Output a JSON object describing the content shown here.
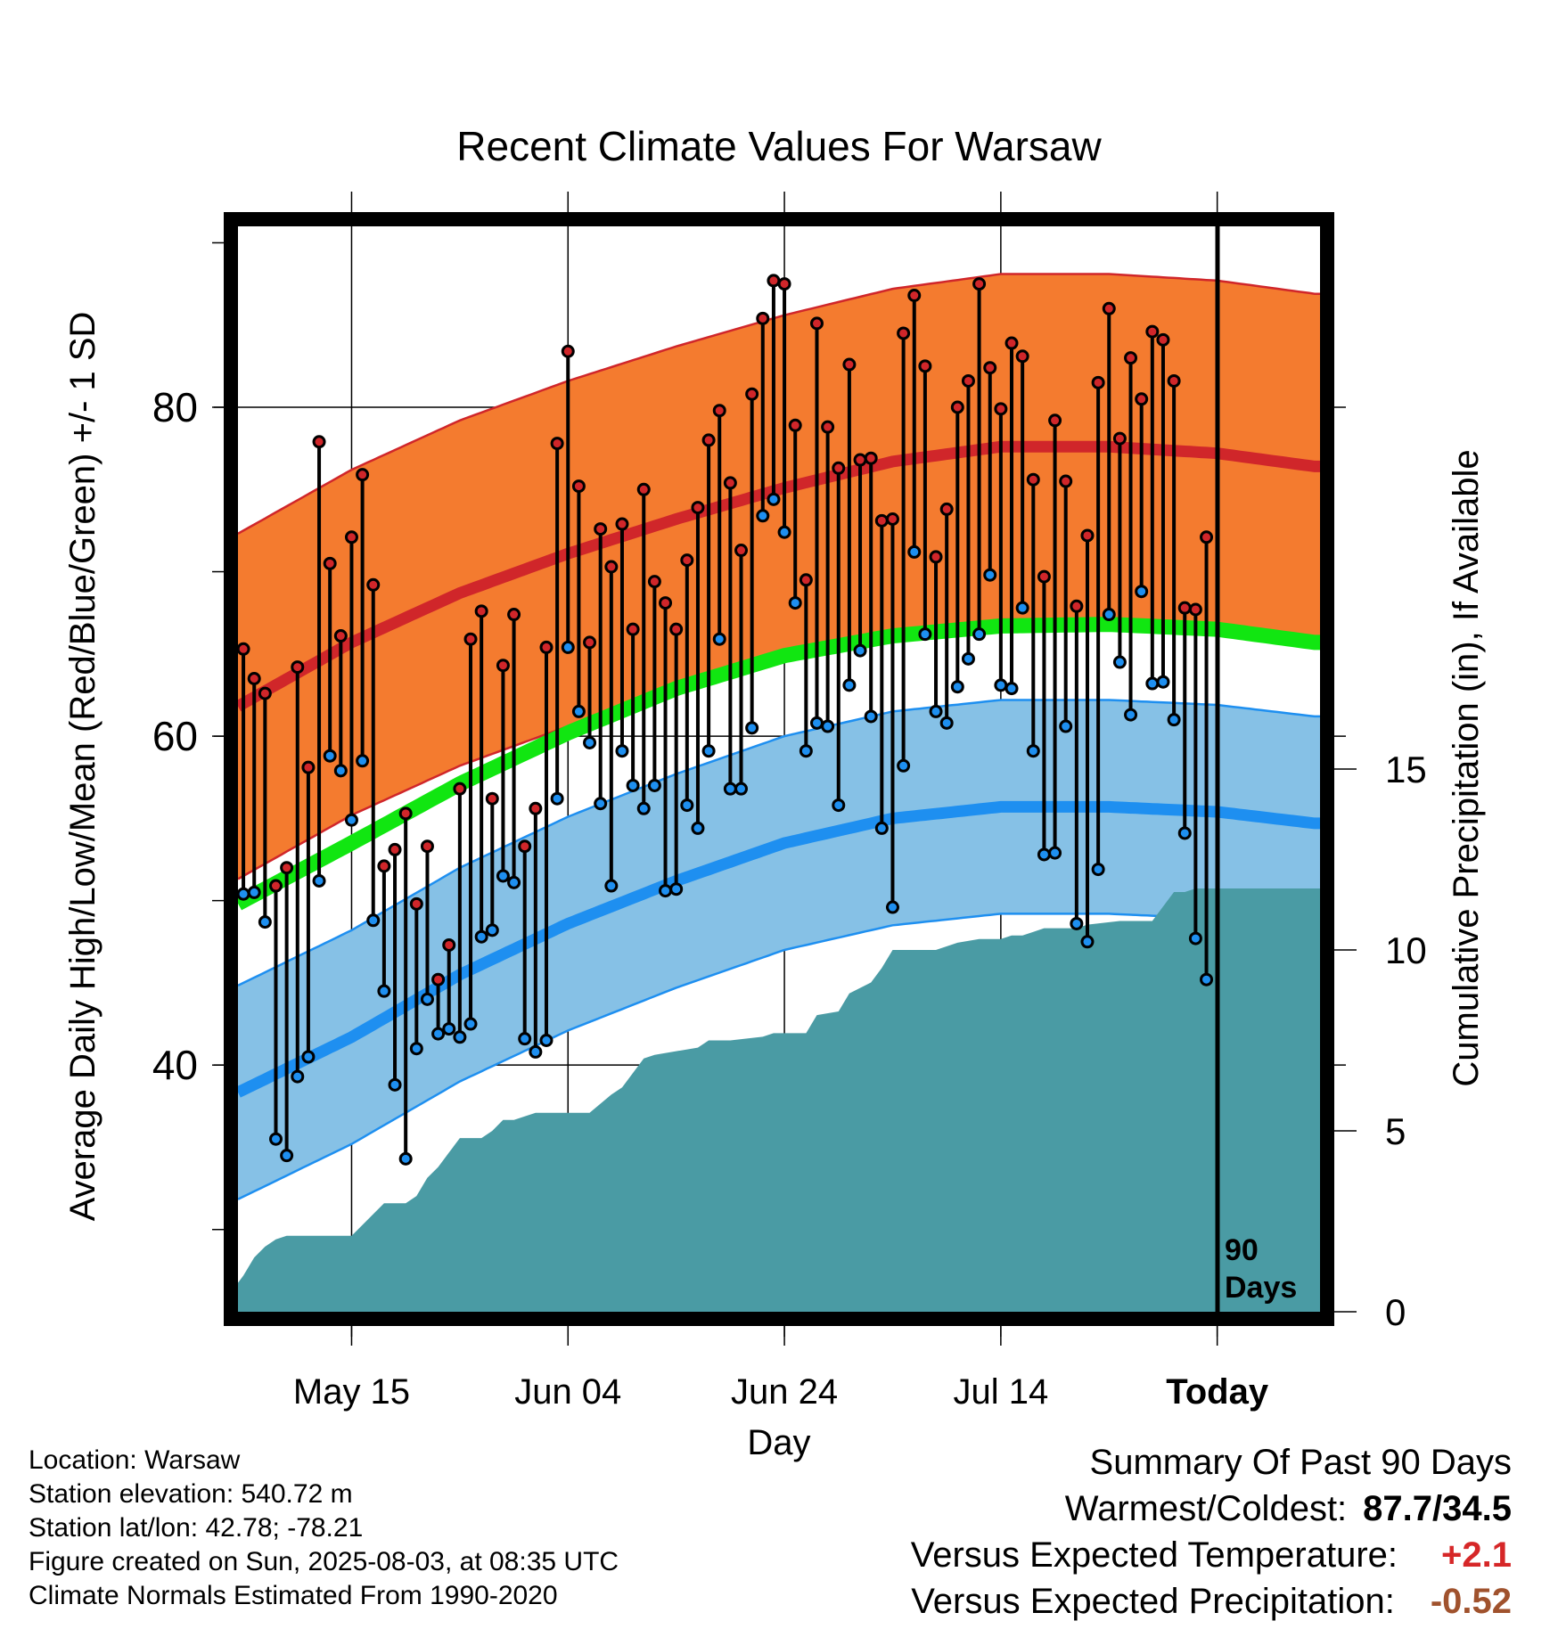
{
  "title": "Recent Climate Values For Warsaw",
  "ylabel_left": "Average Daily High/Low/Mean (Red/Blue/Green) +/- 1 SD",
  "ylabel_right": "Cumulative Precipitation (in), If Available",
  "xlabel": "Day",
  "period_label": "90\nDays",
  "info": {
    "location": "Location: Warsaw",
    "elevation": "Station elevation: 540.72 m",
    "latlon": "Station lat/lon: 42.78; -78.21",
    "created": "Figure created on Sun, 2025-08-03, at 08:35 UTC",
    "normals": "Climate Normals Estimated From 1990-2020"
  },
  "summary": {
    "heading": "Summary Of Past 90 Days",
    "warm_cold_label": "Warmest/Coldest:",
    "warm_cold_value": "87.7/34.5",
    "temp_label": "Versus Expected Temperature:",
    "temp_value": "+2.1",
    "precip_label": "Versus Expected Precipitation:",
    "precip_value": "-0.52"
  },
  "colors": {
    "high_band": "#f47b2f",
    "high_line": "#d0262a",
    "low_band": "#86c1e6",
    "low_line": "#1e8ff0",
    "mean_line": "#11e611",
    "precip": "#4a9ba4",
    "high_dot": "#d0262a",
    "low_dot": "#1e8ff0"
  },
  "chart_data": {
    "type": "line",
    "x_tick_labels": [
      "May 15",
      "Jun 04",
      "Jun 24",
      "Jul 14",
      "Today"
    ],
    "x_tick_days": [
      10,
      30,
      50,
      70,
      90
    ],
    "xlim": [
      -0.5,
      99.5
    ],
    "ylim_left": [
      25,
      91
    ],
    "y_ticks_left": [
      40,
      60,
      80
    ],
    "ylim_right": [
      0,
      30
    ],
    "y_ticks_right": [
      0,
      5,
      10,
      15
    ],
    "grid": true,
    "today_day": 90,
    "normals": {
      "days": [
        0,
        10,
        20,
        30,
        40,
        50,
        60,
        70,
        80,
        90,
        99
      ],
      "high_mean": [
        62,
        65.7,
        68.7,
        71.1,
        73.2,
        75.1,
        76.7,
        77.6,
        77.6,
        77.2,
        76.4
      ],
      "high_sd": 10.5,
      "mean": [
        50,
        53.5,
        57.1,
        60.2,
        62.9,
        64.9,
        66.1,
        66.7,
        66.8,
        66.5,
        65.7
      ],
      "low_mean": [
        38.5,
        41.7,
        45.5,
        48.6,
        51.2,
        53.5,
        55.0,
        55.7,
        55.7,
        55.4,
        54.7
      ],
      "low_sd": 6.5
    },
    "daily": {
      "days": [
        0,
        1,
        2,
        3,
        4,
        5,
        6,
        7,
        8,
        9,
        10,
        11,
        12,
        13,
        14,
        15,
        16,
        17,
        18,
        19,
        20,
        21,
        22,
        23,
        24,
        25,
        26,
        27,
        28,
        29,
        30,
        31,
        32,
        33,
        34,
        35,
        36,
        37,
        38,
        39,
        40,
        41,
        42,
        43,
        44,
        45,
        46,
        47,
        48,
        49,
        50,
        51,
        52,
        53,
        54,
        55,
        56,
        57,
        58,
        59,
        60,
        61,
        62,
        63,
        64,
        65,
        66,
        67,
        68,
        69,
        70,
        71,
        72,
        73,
        74,
        75,
        76,
        77,
        78,
        79,
        80,
        81,
        82,
        83,
        84,
        85,
        86,
        87,
        88,
        89
      ],
      "high": [
        65.3,
        63.5,
        62.6,
        50.9,
        52.0,
        64.2,
        58.1,
        77.9,
        70.5,
        66.1,
        72.1,
        75.9,
        69.2,
        52.1,
        53.1,
        55.3,
        49.8,
        53.3,
        45.2,
        47.3,
        56.8,
        65.9,
        67.6,
        56.2,
        64.3,
        67.4,
        53.3,
        55.6,
        65.4,
        77.8,
        83.4,
        75.2,
        65.7,
        72.6,
        70.3,
        72.9,
        66.5,
        75.0,
        69.4,
        68.1,
        66.5,
        70.7,
        73.9,
        78.0,
        79.8,
        75.4,
        71.3,
        80.8,
        85.4,
        87.7,
        87.5,
        78.9,
        69.5,
        85.1,
        78.8,
        76.3,
        82.6,
        76.8,
        76.9,
        73.1,
        73.2,
        84.5,
        86.8,
        82.5,
        70.9,
        73.8,
        80.0,
        81.6,
        87.5,
        82.4,
        79.9,
        83.9,
        83.1,
        75.6,
        69.7,
        79.2,
        75.5,
        67.9,
        72.2,
        81.5,
        86.0,
        78.1,
        83.0,
        80.5,
        84.6,
        84.1,
        81.6,
        67.8,
        67.7,
        72.1
      ],
      "low": [
        50.4,
        50.5,
        48.7,
        35.5,
        34.5,
        39.3,
        40.5,
        51.2,
        58.8,
        57.9,
        54.9,
        58.5,
        48.8,
        44.5,
        38.8,
        34.3,
        41.0,
        44.0,
        41.9,
        42.2,
        41.7,
        42.5,
        47.8,
        48.2,
        51.5,
        51.1,
        41.6,
        40.8,
        41.5,
        56.2,
        65.4,
        61.5,
        59.6,
        55.9,
        50.9,
        59.1,
        57.0,
        55.6,
        57.0,
        50.6,
        50.7,
        55.8,
        54.4,
        59.1,
        65.9,
        56.8,
        56.8,
        60.5,
        73.4,
        74.4,
        72.4,
        68.1,
        59.1,
        60.8,
        60.6,
        55.8,
        63.1,
        65.2,
        61.2,
        54.4,
        49.6,
        58.2,
        71.2,
        66.2,
        61.5,
        60.8,
        63.0,
        64.7,
        66.2,
        69.8,
        63.1,
        62.9,
        67.8,
        59.1,
        52.8,
        52.9,
        60.6,
        48.6,
        47.5,
        51.9,
        67.4,
        64.5,
        61.3,
        68.8,
        63.2,
        63.3,
        61.0,
        54.1,
        47.7,
        45.2
      ]
    },
    "precip_cumulative": {
      "days": [
        -0.5,
        0,
        1,
        2,
        3,
        4,
        5,
        8,
        9,
        10,
        11,
        12,
        13,
        15,
        16,
        17,
        18,
        19,
        20,
        22,
        23,
        24,
        25,
        26,
        27,
        29,
        30,
        31,
        32,
        34,
        35,
        37,
        38,
        42,
        43,
        44,
        45,
        48,
        49,
        50,
        51,
        52,
        53,
        55,
        56,
        58,
        59,
        60,
        61,
        64,
        66,
        68,
        70,
        71,
        72,
        73,
        74,
        75,
        76,
        77,
        78,
        81,
        82,
        84,
        86,
        87,
        88,
        90,
        99.5
      ],
      "values": [
        0.8,
        1.0,
        1.5,
        1.8,
        2.0,
        2.1,
        2.1,
        2.1,
        2.1,
        2.1,
        2.4,
        2.7,
        3.0,
        3.0,
        3.2,
        3.7,
        4.0,
        4.4,
        4.8,
        4.8,
        5.0,
        5.3,
        5.3,
        5.4,
        5.5,
        5.5,
        5.5,
        5.5,
        5.5,
        6.0,
        6.2,
        7.0,
        7.1,
        7.3,
        7.5,
        7.5,
        7.5,
        7.6,
        7.7,
        7.7,
        7.7,
        7.7,
        8.2,
        8.3,
        8.8,
        9.1,
        9.5,
        10.0,
        10.0,
        10.0,
        10.2,
        10.3,
        10.3,
        10.4,
        10.4,
        10.5,
        10.6,
        10.6,
        10.6,
        10.6,
        10.7,
        10.8,
        10.8,
        10.8,
        11.6,
        11.6,
        11.7,
        11.7,
        11.7
      ]
    }
  }
}
